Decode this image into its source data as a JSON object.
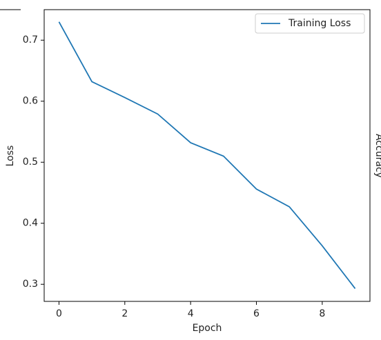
{
  "chart_data": {
    "type": "line",
    "xlabel": "Epoch",
    "ylabel": "Loss",
    "side_label": "Accuracy",
    "x": [
      0,
      1,
      2,
      3,
      4,
      5,
      6,
      7,
      8,
      9
    ],
    "series": [
      {
        "name": "Training Loss",
        "color": "#1f77b4",
        "values": [
          0.73,
          0.632,
          0.606,
          0.579,
          0.532,
          0.51,
          0.456,
          0.427,
          0.363,
          0.293
        ]
      }
    ],
    "xlim": [
      -0.45,
      9.45
    ],
    "ylim": [
      0.272,
      0.75
    ],
    "xticks": [
      0,
      2,
      4,
      6,
      8
    ],
    "yticks": [
      0.3,
      0.4,
      0.5,
      0.6,
      0.7
    ],
    "legend": "upper right"
  }
}
